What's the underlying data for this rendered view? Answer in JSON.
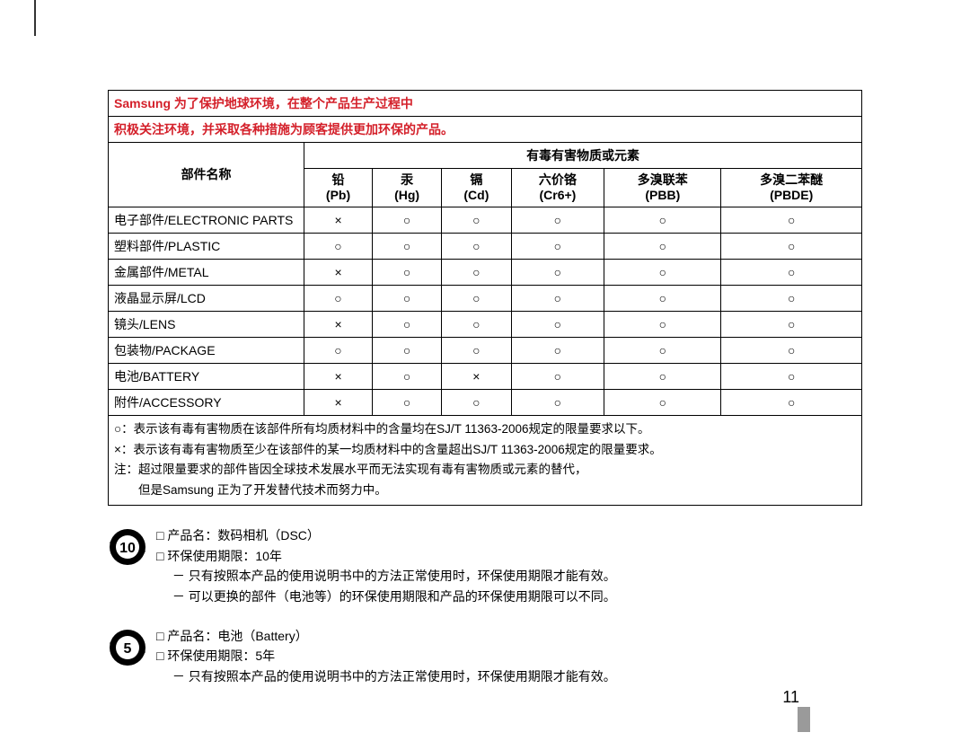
{
  "header": {
    "line1": "Samsung 为了保护地球环境，在整个产品生产过程中",
    "line2": "积极关注环境，并采取各种措施为顾客提供更加环保的产品。"
  },
  "table": {
    "part_label": "部件名称",
    "group_label": "有毒有害物质或元素",
    "columns": [
      {
        "top": "铅",
        "bottom": "(Pb)"
      },
      {
        "top": "汞",
        "bottom": "(Hg)"
      },
      {
        "top": "镉",
        "bottom": "(Cd)"
      },
      {
        "top": "六价铬",
        "bottom": "(Cr6+)"
      },
      {
        "top": "多溴联苯",
        "bottom": "(PBB)"
      },
      {
        "top": "多溴二苯醚",
        "bottom": "(PBDE)"
      }
    ],
    "rows": [
      {
        "name": "电子部件/ELECTRONIC PARTS",
        "v": [
          "×",
          "○",
          "○",
          "○",
          "○",
          "○"
        ]
      },
      {
        "name": "塑料部件/PLASTIC",
        "v": [
          "○",
          "○",
          "○",
          "○",
          "○",
          "○"
        ]
      },
      {
        "name": "金属部件/METAL",
        "v": [
          "×",
          "○",
          "○",
          "○",
          "○",
          "○"
        ]
      },
      {
        "name": "液晶显示屏/LCD",
        "v": [
          "○",
          "○",
          "○",
          "○",
          "○",
          "○"
        ]
      },
      {
        "name": "镜头/LENS",
        "v": [
          "×",
          "○",
          "○",
          "○",
          "○",
          "○"
        ]
      },
      {
        "name": "包装物/PACKAGE",
        "v": [
          "○",
          "○",
          "○",
          "○",
          "○",
          "○"
        ]
      },
      {
        "name": "电池/BATTERY",
        "v": [
          "×",
          "○",
          "×",
          "○",
          "○",
          "○"
        ]
      },
      {
        "name": "附件/ACCESSORY",
        "v": [
          "×",
          "○",
          "○",
          "○",
          "○",
          "○"
        ]
      }
    ],
    "notes": [
      "○：表示该有毒有害物质在该部件所有均质材料中的含量均在SJ/T 11363-2006规定的限量要求以下。",
      "×：表示该有毒有害物质至少在该部件的某一均质材料中的含量超出SJ/T 11363-2006规定的限量要求。",
      "注：超过限量要求的部件皆因全球技术发展水平而无法实现有毒有害物质或元素的替代，",
      "　　但是Samsung 正为了开发替代技术而努力中。"
    ]
  },
  "block10": {
    "number": "10",
    "lines": [
      "□ 产品名：数码相机（DSC）",
      "□ 环保使用期限：10年",
      "　 － 只有按照本产品的使用说明书中的方法正常使用时，环保使用期限才能有效。",
      "　 － 可以更换的部件（电池等）的环保使用期限和产品的环保使用期限可以不同。"
    ]
  },
  "block5": {
    "number": "5",
    "lines": [
      "□ 产品名：电池（Battery）",
      "□ 环保使用期限：5年",
      "　 － 只有按照本产品的使用说明书中的方法正常使用时，环保使用期限才能有效。"
    ]
  },
  "page_number": "11",
  "colors": {
    "header_text": "#d4202a",
    "icon_fill": "#000000"
  }
}
